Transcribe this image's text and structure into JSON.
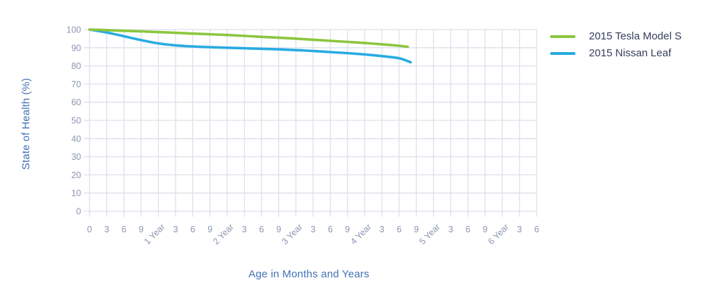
{
  "chart_data": {
    "type": "line",
    "title": "",
    "xlabel": "Age in Months and Years",
    "ylabel": "State of Health (%)",
    "xlim_months": [
      0,
      78
    ],
    "ylim": [
      0,
      100
    ],
    "y_tick_step": 10,
    "y_tick_labels": [
      "0",
      "10",
      "20",
      "30",
      "40",
      "50",
      "60",
      "70",
      "80",
      "90",
      "100"
    ],
    "x_tick_step_months": 3,
    "x_tick_labels": [
      "0",
      "3",
      "6",
      "9",
      "1 Year",
      "3",
      "6",
      "9",
      "2 Year",
      "3",
      "6",
      "9",
      "3 Year",
      "3",
      "6",
      "9",
      "4 Year",
      "3",
      "6",
      "9",
      "5 Year",
      "3",
      "6",
      "9",
      "6 Year",
      "3",
      "6"
    ],
    "grid": true,
    "legend_position": "right",
    "series": [
      {
        "name": "2015 Tesla Model S",
        "color": "#8CC63F",
        "x_months": [
          0,
          3,
          6,
          9,
          12,
          15,
          18,
          21,
          24,
          27,
          30,
          33,
          36,
          39,
          42,
          45,
          48,
          51,
          54,
          55.5
        ],
        "y": [
          100,
          99.7,
          99.3,
          99.0,
          98.6,
          98.2,
          97.8,
          97.4,
          97.0,
          96.5,
          96.0,
          95.5,
          95.0,
          94.4,
          93.8,
          93.2,
          92.6,
          91.9,
          91.1,
          90.5
        ]
      },
      {
        "name": "2015 Nissan Leaf",
        "color": "#29ABE2",
        "x_months": [
          0,
          3,
          6,
          9,
          12,
          15,
          18,
          21,
          24,
          27,
          30,
          33,
          36,
          39,
          42,
          45,
          48,
          51,
          54,
          56
        ],
        "y": [
          100,
          98.4,
          96.3,
          94.2,
          92.4,
          91.3,
          90.7,
          90.3,
          90.0,
          89.7,
          89.4,
          89.1,
          88.7,
          88.2,
          87.6,
          87.0,
          86.3,
          85.4,
          84.2,
          82.0
        ]
      }
    ]
  },
  "colors": {
    "background": "#ffffff",
    "grid": "#dce1ea",
    "tick_label": "#8A96B0",
    "axis_title": "#4270B4",
    "legend_text": "#343F5C"
  }
}
